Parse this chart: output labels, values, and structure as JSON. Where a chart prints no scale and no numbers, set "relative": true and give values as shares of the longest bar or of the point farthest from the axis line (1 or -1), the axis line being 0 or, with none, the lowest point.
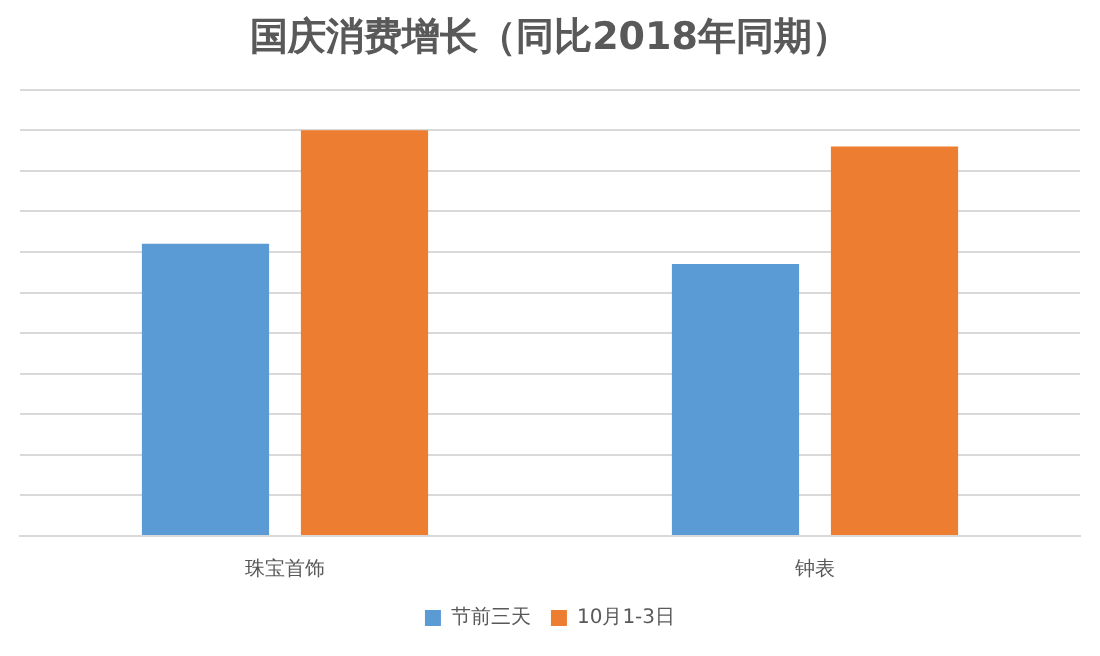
{
  "chart_data": {
    "type": "bar",
    "title": "国庆消费增长（同比2018年同期）",
    "categories": [
      "珠宝首饰",
      "钟表"
    ],
    "relative": true,
    "grid": "y",
    "legend": "bottom",
    "series": [
      {
        "name": "节前三天",
        "color": "#5b9bd5",
        "values": [
          0.72,
          0.67
        ]
      },
      {
        "name": "10月1-3日",
        "color": "#ed7d31",
        "values": [
          1,
          0.96
        ]
      }
    ]
  }
}
